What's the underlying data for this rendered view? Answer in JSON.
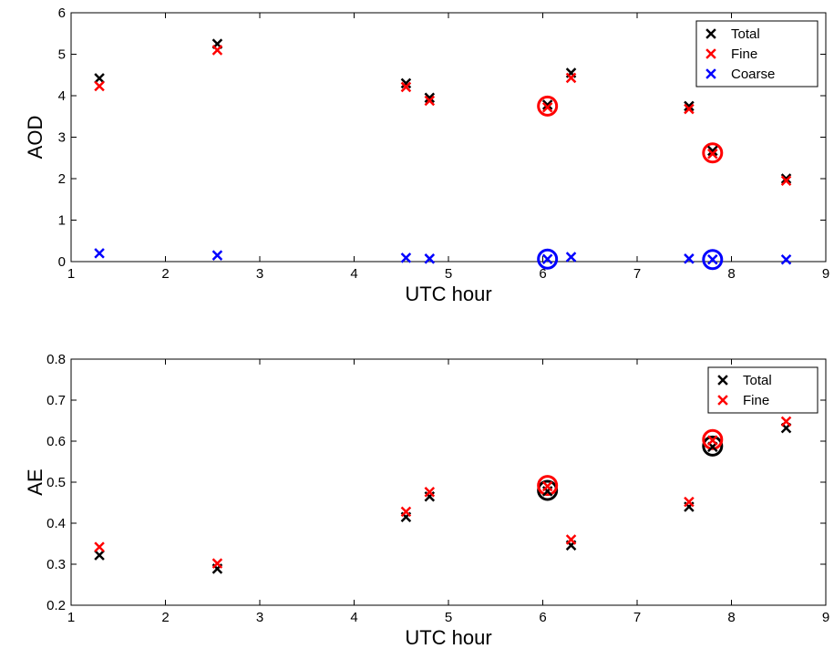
{
  "chart_data": [
    {
      "type": "scatter",
      "xlabel": "UTC hour",
      "ylabel": "AOD",
      "xlim": [
        1,
        9
      ],
      "ylim": [
        0,
        6
      ],
      "xticks": [
        "1",
        "2",
        "3",
        "4",
        "5",
        "6",
        "7",
        "8",
        "9"
      ],
      "yticks": [
        "0",
        "1",
        "2",
        "3",
        "4",
        "5",
        "6"
      ],
      "grid": false,
      "legend": "top-right",
      "series": [
        {
          "name": "Total",
          "color": "#000000",
          "marker": "x",
          "x": [
            1.3,
            2.55,
            4.55,
            4.8,
            6.05,
            6.3,
            7.55,
            7.8,
            8.58
          ],
          "y": [
            4.42,
            5.25,
            4.3,
            3.95,
            3.78,
            4.55,
            3.75,
            2.67,
            2.0
          ]
        },
        {
          "name": "Fine",
          "color": "#ff0000",
          "marker": "x",
          "x": [
            1.3,
            2.55,
            4.55,
            4.8,
            6.05,
            6.3,
            7.55,
            7.8,
            8.58
          ],
          "y": [
            4.23,
            5.1,
            4.21,
            3.88,
            3.72,
            4.43,
            3.68,
            2.6,
            1.95
          ]
        },
        {
          "name": "Coarse",
          "color": "#0000ff",
          "marker": "x",
          "x": [
            1.3,
            2.55,
            4.55,
            4.8,
            6.05,
            6.3,
            7.55,
            7.8,
            8.58
          ],
          "y": [
            0.2,
            0.15,
            0.09,
            0.07,
            0.06,
            0.11,
            0.07,
            0.05,
            0.05
          ]
        }
      ],
      "highlights": [
        {
          "color": "#ff0000",
          "x": 6.05,
          "y": 3.75
        },
        {
          "color": "#ff0000",
          "x": 7.8,
          "y": 2.62
        },
        {
          "color": "#0000ff",
          "x": 6.05,
          "y": 0.06
        },
        {
          "color": "#0000ff",
          "x": 7.8,
          "y": 0.05
        }
      ]
    },
    {
      "type": "scatter",
      "xlabel": "UTC hour",
      "ylabel": "AE",
      "xlim": [
        1,
        9
      ],
      "ylim": [
        0.2,
        0.8
      ],
      "xticks": [
        "1",
        "2",
        "3",
        "4",
        "5",
        "6",
        "7",
        "8",
        "9"
      ],
      "yticks": [
        "0.2",
        "0.3",
        "0.4",
        "0.5",
        "0.6",
        "0.7",
        "0.8"
      ],
      "grid": false,
      "legend": "top-right",
      "series": [
        {
          "name": "Total",
          "color": "#000000",
          "marker": "x",
          "x": [
            1.3,
            2.55,
            4.55,
            4.8,
            6.05,
            6.3,
            7.55,
            7.8,
            8.58
          ],
          "y": [
            0.322,
            0.289,
            0.415,
            0.465,
            0.478,
            0.346,
            0.44,
            0.586,
            0.632
          ]
        },
        {
          "name": "Fine",
          "color": "#ff0000",
          "marker": "x",
          "x": [
            1.3,
            2.55,
            4.55,
            4.8,
            6.05,
            6.3,
            7.55,
            7.8,
            8.58
          ],
          "y": [
            0.342,
            0.302,
            0.428,
            0.476,
            0.49,
            0.36,
            0.452,
            0.602,
            0.648
          ]
        }
      ],
      "highlights": [
        {
          "color": "#000000",
          "x": 6.05,
          "y": 0.48
        },
        {
          "color": "#ff0000",
          "x": 6.05,
          "y": 0.492
        },
        {
          "color": "#000000",
          "x": 7.8,
          "y": 0.588
        },
        {
          "color": "#ff0000",
          "x": 7.8,
          "y": 0.604
        }
      ]
    }
  ]
}
